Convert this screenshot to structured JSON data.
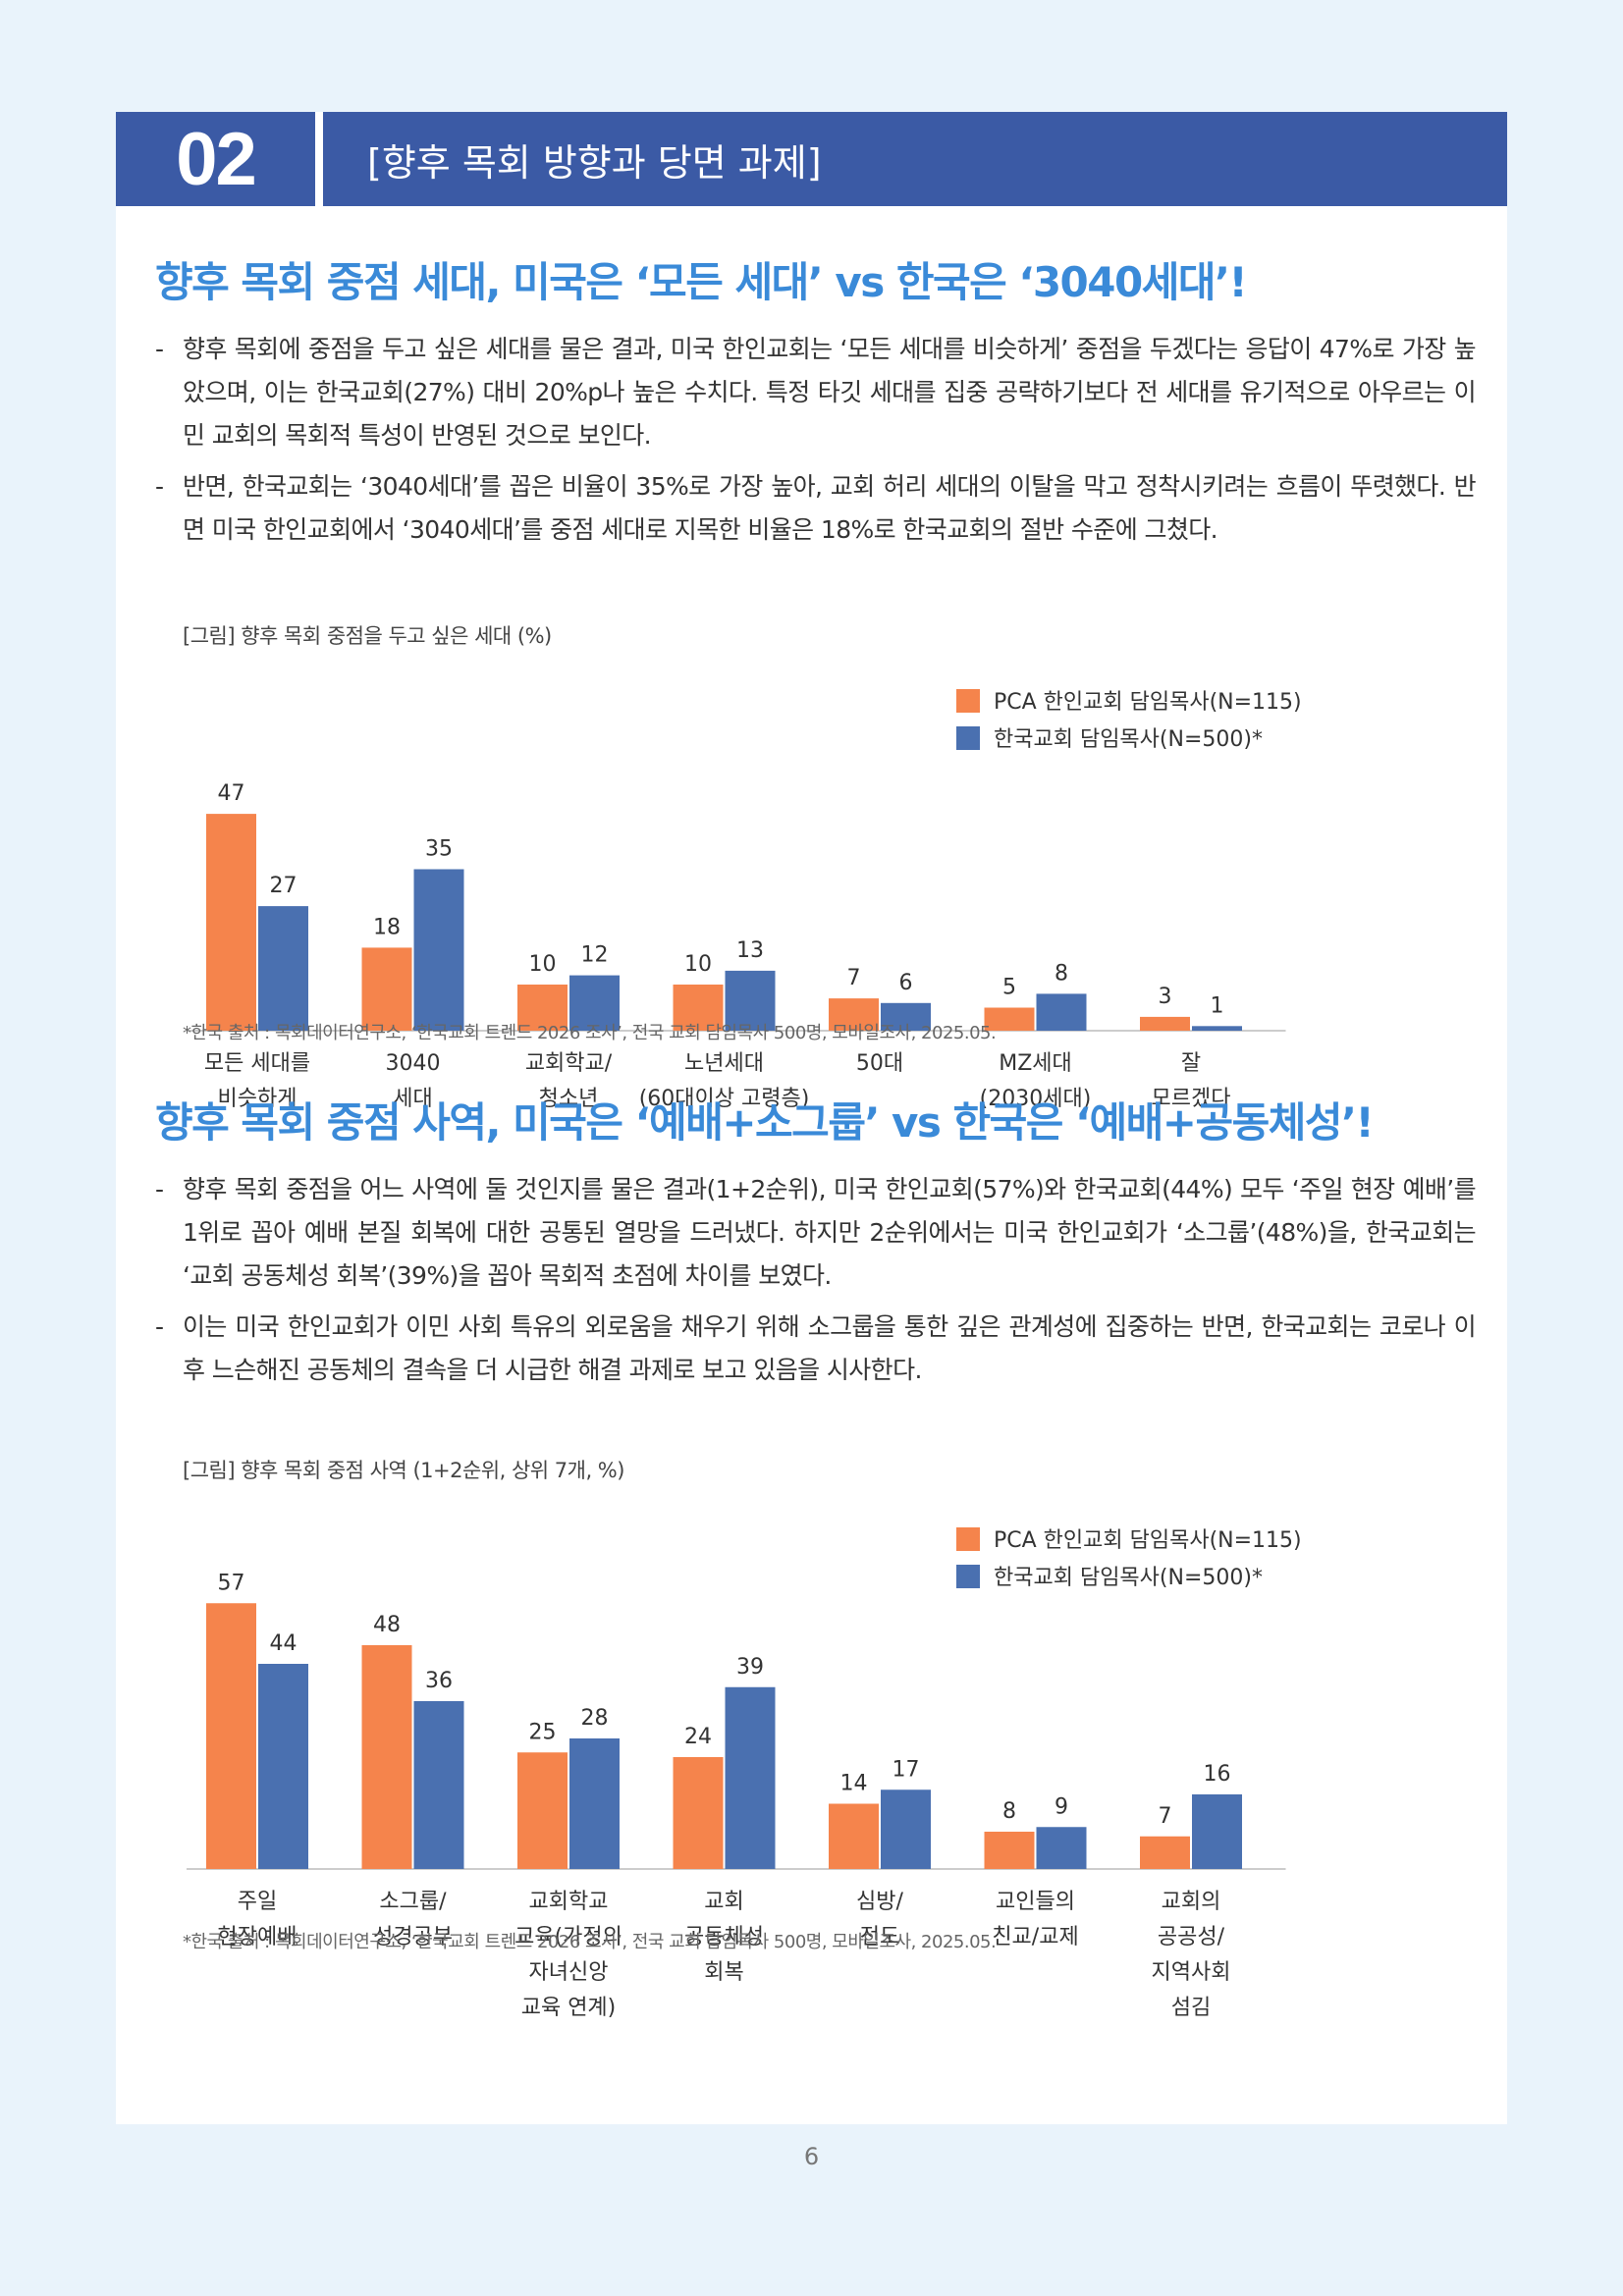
{
  "header": {
    "number": "02",
    "title": "[향후 목회 방향과 당면 과제]"
  },
  "section1": {
    "title": "향후 목회 중점 세대, 미국은 ‘모든 세대’ vs 한국은 ‘3040세대’!",
    "bullets": [
      "향후 목회에 중점을 두고 싶은 세대를 물은 결과, 미국 한인교회는 ‘모든 세대를 비슷하게’ 중점을 두겠다는 응답이 47%로 가장 높았으며, 이는 한국교회(27%) 대비 20%p나 높은 수치다. 특정 타깃 세대를 집중 공략하기보다 전 세대를 유기적으로 아우르는 이민 교회의 목회적 특성이 반영된 것으로 보인다.",
      "반면, 한국교회는 ‘3040세대’를 꼽은 비율이 35%로 가장 높아, 교회 허리 세대의 이탈을 막고 정착시키려는 흐름이 뚜렷했다. 반면 미국 한인교회에서 ‘3040세대’를 중점 세대로 지목한 비율은 18%로 한국교회의 절반 수준에 그쳤다."
    ],
    "figure_caption": "[그림] 향후 목회 중점을 두고 싶은 세대 (%)",
    "source": "*한국 출처 : 목회데이터연구소, ‘한국교회 트렌드 2026 조사’, 전국 교회 담임목사 500명, 모바일조사, 2025.05."
  },
  "section2": {
    "title": "향후 목회 중점 사역, 미국은 ‘예배+소그룹’ vs 한국은 ‘예배+공동체성’!",
    "bullets": [
      "향후 목회 중점을 어느 사역에 둘 것인지를 물은 결과(1+2순위), 미국 한인교회(57%)와 한국교회(44%) 모두 ‘주일 현장 예배’를 1위로 꼽아 예배 본질 회복에 대한 공통된 열망을 드러냈다. 하지만 2순위에서는 미국 한인교회가 ‘소그룹’(48%)을, 한국교회는 ‘교회 공동체성 회복’(39%)을 꼽아 목회적 초점에 차이를 보였다.",
      "이는 미국 한인교회가 이민 사회 특유의 외로움을 채우기 위해 소그룹을 통한 깊은 관계성에 집중하는 반면, 한국교회는 코로나 이후 느슨해진 공동체의 결속을 더 시급한 해결 과제로 보고 있음을 시사한다."
    ],
    "figure_caption": "[그림] 향후 목회 중점 사역 (1+2순위, 상위 7개, %)",
    "source": "*한국 출처 : 목회데이터연구소, ‘한국교회 트렌드 2026 조사’, 전국 교회 담임목사 500명, 모바일조사, 2025.05."
  },
  "chart_data": [
    {
      "type": "bar",
      "title": "[그림] 향후 목회 중점을 두고 싶은 세대 (%)",
      "categories": [
        [
          "모든 세대를",
          "비슷하게"
        ],
        [
          "3040",
          "세대"
        ],
        [
          "교회학교/",
          "청소년"
        ],
        [
          "노년세대",
          "(60대이상 고령층)"
        ],
        [
          "50대"
        ],
        [
          "MZ세대",
          "(2030세대)"
        ],
        [
          "잘",
          "모르겠다"
        ]
      ],
      "series": [
        {
          "name": "PCA 한인교회 담임목사(N=115)",
          "color": "#f5844c",
          "values": [
            47,
            18,
            10,
            10,
            7,
            5,
            3
          ]
        },
        {
          "name": "한국교회 담임목사(N=500)*",
          "color": "#4a70b0",
          "values": [
            27,
            35,
            12,
            13,
            6,
            8,
            1
          ]
        }
      ],
      "ylim": [
        0,
        50
      ],
      "legend": "top-right",
      "grid": false
    },
    {
      "type": "bar",
      "title": "[그림] 향후 목회 중점 사역 (1+2순위, 상위 7개, %)",
      "categories": [
        [
          "주일",
          "현장예배"
        ],
        [
          "소그룹/",
          "성경공부"
        ],
        [
          "교회학교",
          "교육(가정의",
          "자녀신앙",
          "교육 연계)"
        ],
        [
          "교회",
          "공동체성",
          "회복"
        ],
        [
          "심방/",
          "전도"
        ],
        [
          "교인들의",
          "친교/교제"
        ],
        [
          "교회의",
          "공공성/",
          "지역사회",
          "섬김"
        ]
      ],
      "series": [
        {
          "name": "PCA 한인교회 담임목사(N=115)",
          "color": "#f5844c",
          "values": [
            57,
            48,
            25,
            24,
            14,
            8,
            7
          ]
        },
        {
          "name": "한국교회 담임목사(N=500)*",
          "color": "#4a70b0",
          "values": [
            44,
            36,
            28,
            39,
            17,
            9,
            16
          ]
        }
      ],
      "ylim": [
        0,
        60
      ],
      "legend": "top-right",
      "grid": false
    }
  ],
  "page_number": "6"
}
